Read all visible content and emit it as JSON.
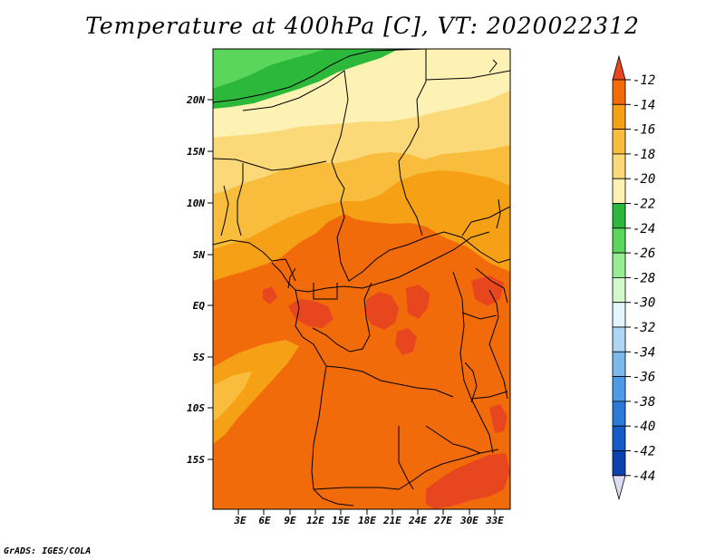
{
  "title": "Temperature at 400hPa [C], VT: 2020022312",
  "credit": "GrADS: IGES/COLA",
  "map": {
    "lat_labels": [
      "20N",
      "15N",
      "10N",
      "5N",
      "EQ",
      "5S",
      "10S",
      "15S"
    ],
    "lon_labels": [
      "3E",
      "6E",
      "9E",
      "12E",
      "15E",
      "18E",
      "21E",
      "24E",
      "27E",
      "30E",
      "33E"
    ]
  },
  "colorbar": {
    "labels": [
      "-12",
      "-14",
      "-16",
      "-18",
      "-20",
      "-22",
      "-24",
      "-26",
      "-28",
      "-30",
      "-32",
      "-34",
      "-36",
      "-38",
      "-40",
      "-42",
      "-44"
    ],
    "colors": [
      "#e8461f",
      "#f26b0a",
      "#f5a015",
      "#f8bd3c",
      "#fbd978",
      "#fdf2b3",
      "#2cb83a",
      "#5ad65a",
      "#98ec92",
      "#d2f8cc",
      "#e4f5fc",
      "#aed6f4",
      "#7cbaee",
      "#4d9be6",
      "#2c7ad8",
      "#165cc8",
      "#0c42b0",
      "#0c1a7a",
      "#dcdcf4"
    ]
  },
  "colors": {
    "land_base": "#f26b0a",
    "warm_spots": "#e8461f",
    "borders": "#000000"
  }
}
